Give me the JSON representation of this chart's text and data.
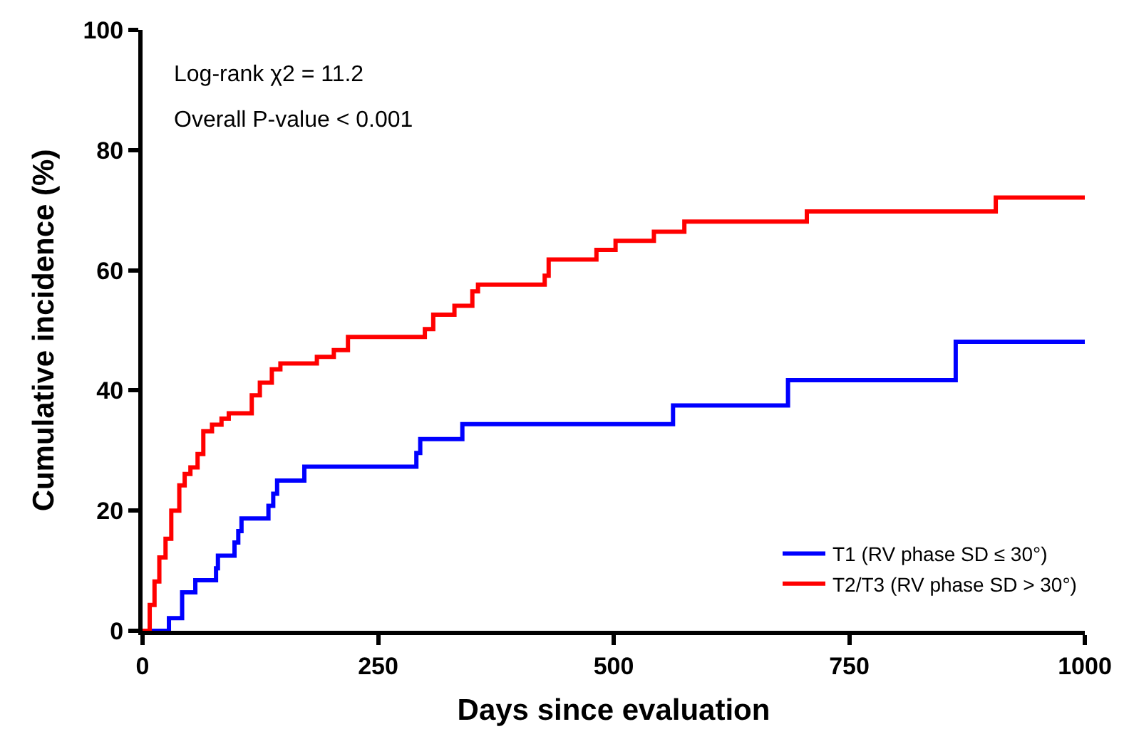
{
  "chart_data": {
    "type": "step",
    "xlabel": "Days since evaluation",
    "ylabel": "Cumulative incidence (%)",
    "xlim": [
      0,
      1000
    ],
    "ylim": [
      0,
      100
    ],
    "xticks": [
      0,
      250,
      500,
      750,
      1000
    ],
    "yticks": [
      0,
      20,
      40,
      60,
      80,
      100
    ],
    "legend": "bottom right",
    "marker": "none",
    "line_style": "solid",
    "annotations": [
      "Log-rank χ2 = 11.2",
      "Overall P-value < 0.001"
    ],
    "series": [
      {
        "name": "T1 (RV phase SD ≤ 30°)",
        "color": "#0000ff",
        "x": [
          0,
          28,
          42,
          56,
          78,
          80,
          97.6,
          101.6,
          105,
          133.6,
          138.7,
          142.8,
          171.7,
          290.6,
          294.7,
          339.4,
          563,
          685,
          863,
          1000
        ],
        "values": [
          0,
          2.1,
          6.4,
          8.4,
          10.4,
          12.5,
          14.7,
          16.6,
          18.7,
          20.8,
          22.8,
          25.0,
          27.3,
          29.6,
          31.9,
          34.4,
          37.5,
          41.7,
          48.1,
          48.1
        ]
      },
      {
        "name": "T2/T3 (RV phase SD > 30°)",
        "color": "#ff0000",
        "x": [
          0,
          7.6,
          12.7,
          17.8,
          24.4,
          30.5,
          39,
          44.7,
          50.8,
          58.4,
          64.5,
          73.7,
          83.8,
          91.5,
          115.9,
          124.5,
          137.2,
          146.3,
          185,
          203,
          218,
          299.6,
          308.5,
          331,
          350,
          356,
          426.8,
          431,
          481.7,
          502,
          542.7,
          575,
          705,
          905.5,
          1000
        ],
        "values": [
          0,
          4.3,
          8.2,
          12.2,
          15.3,
          20,
          24.2,
          26.1,
          27.2,
          29.4,
          33.2,
          34.3,
          35.3,
          36.2,
          39.2,
          41.3,
          43.5,
          44.5,
          45.6,
          46.7,
          48.9,
          50.2,
          52.6,
          54.1,
          56.5,
          57.6,
          59.1,
          61.8,
          63.4,
          64.9,
          66.4,
          68.1,
          69.8,
          72.1,
          72.1
        ]
      }
    ]
  }
}
